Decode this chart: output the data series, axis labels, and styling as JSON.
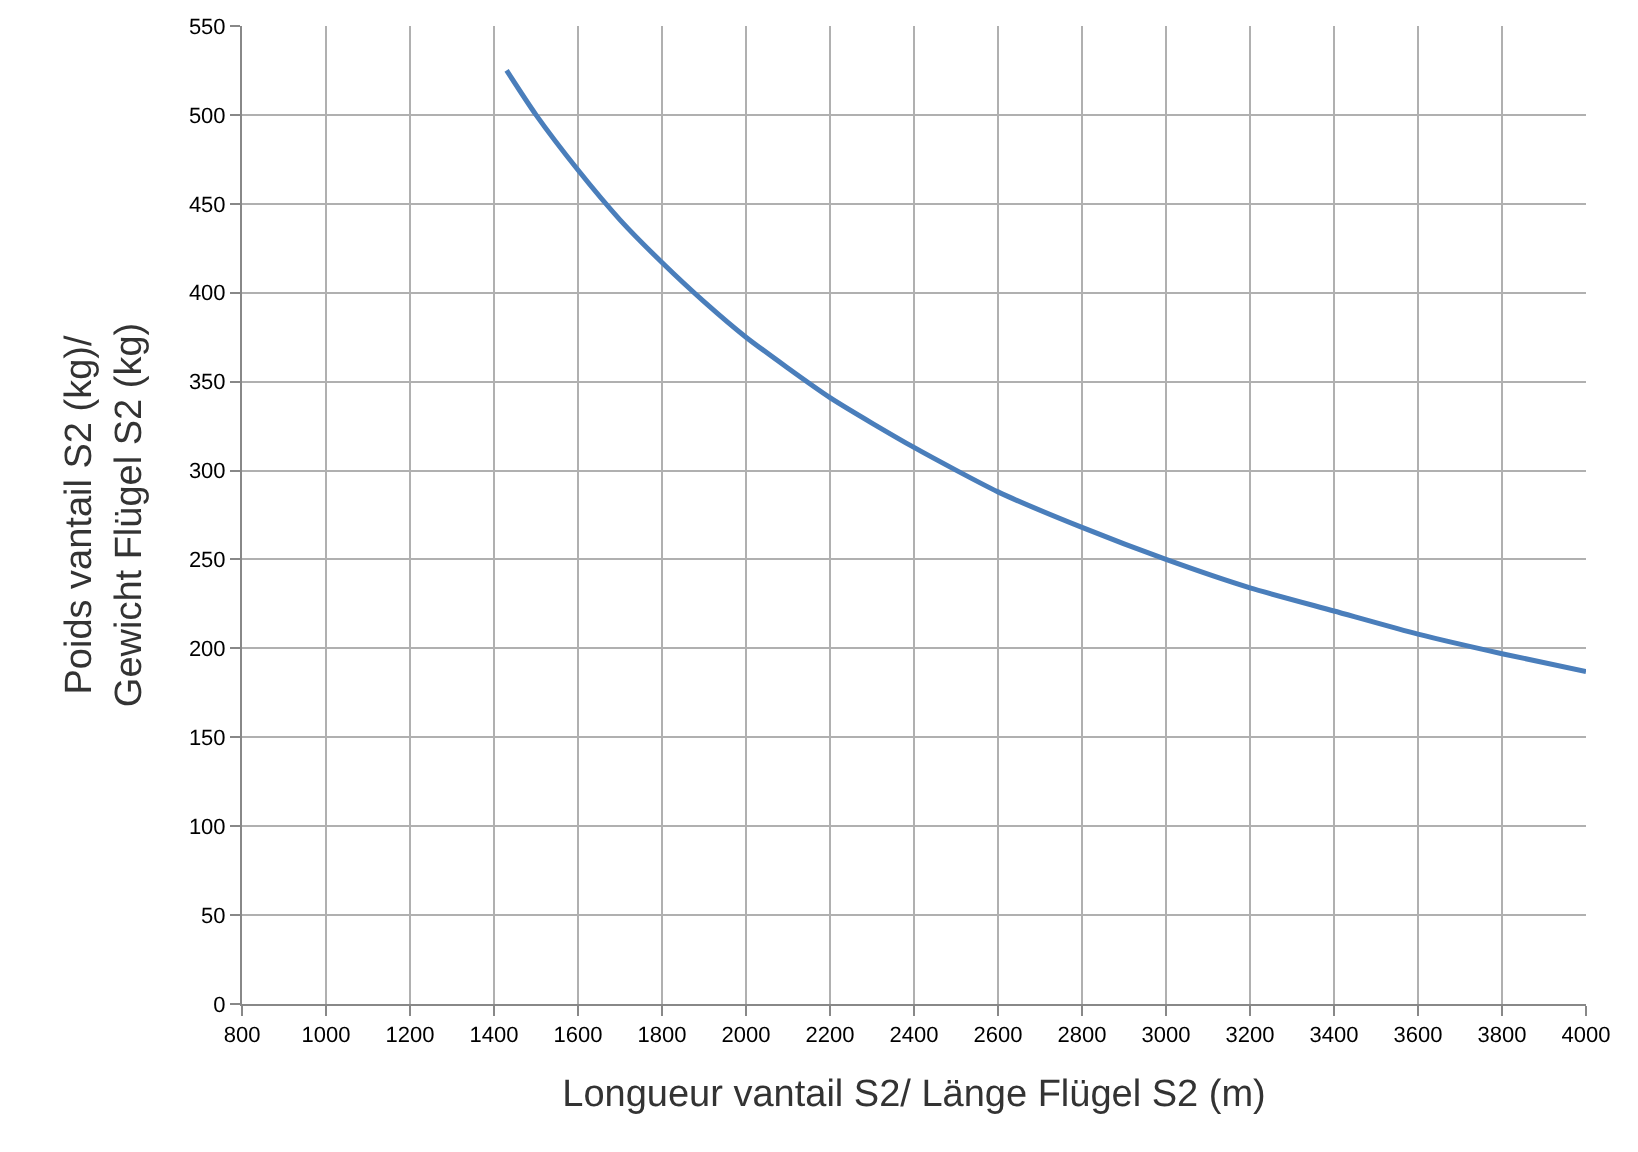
{
  "chart_data": {
    "type": "line",
    "xlabel": "Longueur vantail S2/ Länge Flügel S2 (m)",
    "ylabel": "Poids vantail S2 (kg)/\nGewicht Flügel S2 (kg)",
    "x": [
      1430,
      1500,
      1600,
      1700,
      1800,
      1900,
      2000,
      2200,
      2400,
      2600,
      2800,
      3000,
      3200,
      3400,
      3600,
      3800,
      4000
    ],
    "series": [
      {
        "color": "#4a7ebb",
        "values": [
          525,
          500,
          469,
          441,
          417,
          395,
          375,
          341,
          313,
          288,
          268,
          250,
          234,
          221,
          208,
          197,
          187
        ]
      }
    ],
    "xlim": [
      800,
      4000
    ],
    "xticks": [
      800,
      1000,
      1200,
      1400,
      1600,
      1800,
      2000,
      2200,
      2400,
      2600,
      2800,
      3000,
      3200,
      3400,
      3600,
      3800,
      4000
    ],
    "ylim": [
      0,
      550
    ],
    "yticks": [
      0,
      50,
      100,
      150,
      200,
      250,
      300,
      350,
      400,
      450,
      500,
      550
    ],
    "grid": true,
    "legend": false,
    "marker": "none",
    "line_style": "solid"
  }
}
